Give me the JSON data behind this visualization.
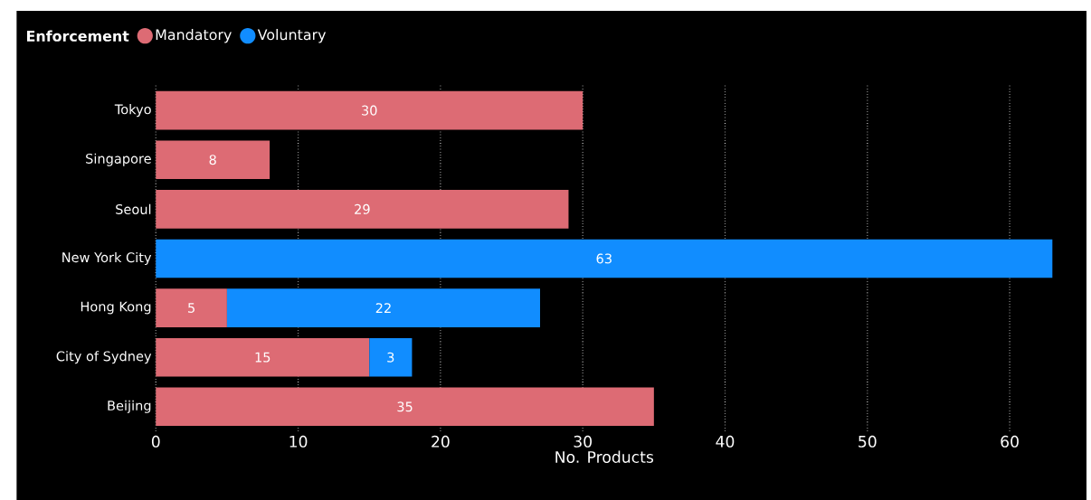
{
  "chart_data": {
    "type": "bar",
    "orientation": "horizontal",
    "stacked": true,
    "legend_title": "Enforcement",
    "xlabel": "No. Products",
    "categories": [
      "Tokyo",
      "Singapore",
      "Seoul",
      "New York City",
      "Hong Kong",
      "City of Sydney",
      "Beijing"
    ],
    "series": [
      {
        "name": "Mandatory",
        "color": "#dd6b74",
        "values": [
          30,
          8,
          29,
          null,
          5,
          15,
          35
        ]
      },
      {
        "name": "Voluntary",
        "color": "#118dff",
        "values": [
          null,
          null,
          null,
          63,
          22,
          3,
          null
        ]
      }
    ],
    "xlim": [
      0,
      63
    ],
    "xticks": [
      0,
      10,
      20,
      30,
      40,
      50,
      60
    ],
    "grid": "x",
    "legend": "top left",
    "data_labels": true
  }
}
